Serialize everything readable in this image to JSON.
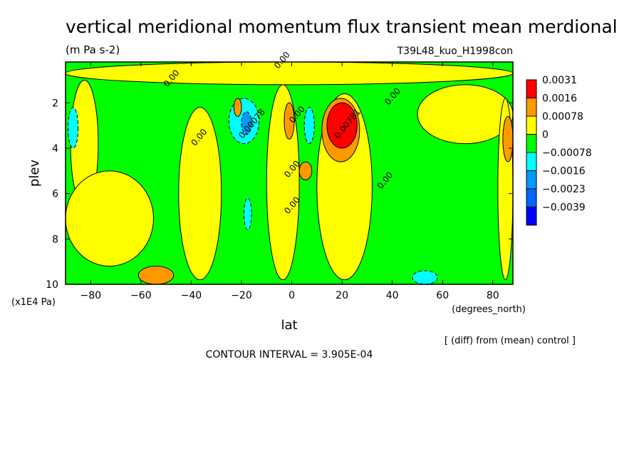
{
  "chart_data": {
    "type": "heatmap",
    "title": "vertical meridional momentum flux transient mean merdional",
    "units": "(m Pa s-2)",
    "run_label": "T39L48_kuo_H1998con",
    "xlabel": "lat",
    "x_units": "(degrees_north)",
    "ylabel": "plev",
    "y_units": "(x1E4 Pa)",
    "xlim": [
      -90,
      88
    ],
    "ylim": [
      0.2,
      10
    ],
    "x_ticks": [
      -80,
      -60,
      -40,
      -20,
      0,
      20,
      40,
      60,
      80
    ],
    "y_ticks": [
      2,
      4,
      6,
      8,
      10
    ],
    "y_inverted": true,
    "diff_note": "[ (diff) from (mean) control ]",
    "contour_interval_text": "CONTOUR INTERVAL = 3.905E-04",
    "legend": {
      "placement": "right",
      "levels": [
        {
          "label": "0.0031",
          "color": "#ff0000"
        },
        {
          "label": "0.0016",
          "color": "#ff9900"
        },
        {
          "label": "0.00078",
          "color": "#ffff00"
        },
        {
          "label": "0",
          "color": "#00ff00"
        },
        {
          "label": "−0.00078",
          "color": "#00ffff"
        },
        {
          "label": "−0.0016",
          "color": "#0099ff"
        },
        {
          "label": "−0.0023",
          "color": "#0066ff"
        },
        {
          "label": "−0.0039",
          "color": "#0000ff"
        }
      ]
    },
    "contour_labels": [
      {
        "text": "0.00",
        "lat": -3,
        "plev": 0.2
      },
      {
        "text": "0.00",
        "lat": -47,
        "plev": 1.0
      },
      {
        "text": "0.00",
        "lat": 41,
        "plev": 1.8
      },
      {
        "text": "0.00078",
        "lat": -15,
        "plev": 3.0
      },
      {
        "text": "0.00",
        "lat": -36,
        "plev": 3.6
      },
      {
        "text": "0.00",
        "lat": 3,
        "plev": 2.6
      },
      {
        "text": "0.00781",
        "lat": 23,
        "plev": 3.0
      },
      {
        "text": "0.00",
        "lat": 38,
        "plev": 5.5
      },
      {
        "text": "0.00",
        "lat": 1,
        "plev": 5.0
      },
      {
        "text": "0.00",
        "lat": 1,
        "plev": 6.6
      }
    ],
    "regions": [
      {
        "level": "0",
        "lat": [
          -90,
          88
        ],
        "plev": [
          0.2,
          10
        ]
      },
      {
        "level": "0.00078",
        "lat": [
          -90,
          88
        ],
        "plev": [
          0.2,
          1.2
        ]
      },
      {
        "level": "0.00078",
        "lat": [
          -88,
          -77
        ],
        "plev": [
          1.0,
          6.6
        ]
      },
      {
        "level": "0.00078",
        "lat": [
          -45,
          -28
        ],
        "plev": [
          2.2,
          9.8
        ]
      },
      {
        "level": "0.00078",
        "lat": [
          10,
          32
        ],
        "plev": [
          1.6,
          9.8
        ]
      },
      {
        "level": "0.00078",
        "lat": [
          -10,
          3
        ],
        "plev": [
          1.2,
          9.8
        ]
      },
      {
        "level": "0.00078",
        "lat": [
          -90,
          -55
        ],
        "plev": [
          5.0,
          9.2
        ]
      },
      {
        "level": "0.00078",
        "lat": [
          50,
          88
        ],
        "plev": [
          1.2,
          3.8
        ]
      },
      {
        "level": "0.00078",
        "lat": [
          82,
          88
        ],
        "plev": [
          1.8,
          9.8
        ]
      },
      {
        "level": "−0.00078",
        "lat": [
          -25,
          -13
        ],
        "plev": [
          1.8,
          3.8
        ]
      },
      {
        "level": "−0.00078",
        "lat": [
          5,
          9
        ],
        "plev": [
          2.2,
          3.8
        ]
      },
      {
        "level": "−0.00078",
        "lat": [
          -89,
          -85
        ],
        "plev": [
          2.2,
          4.0
        ]
      },
      {
        "level": "−0.00078",
        "lat": [
          -19,
          -16
        ],
        "plev": [
          6.2,
          7.6
        ]
      },
      {
        "level": "−0.00078",
        "lat": [
          48,
          58
        ],
        "plev": [
          9.4,
          10
        ]
      },
      {
        "level": "−0.0016",
        "lat": [
          -20,
          -16
        ],
        "plev": [
          2.4,
          3.4
        ]
      },
      {
        "level": "0.0016",
        "lat": [
          12,
          27
        ],
        "plev": [
          1.8,
          4.6
        ]
      },
      {
        "level": "0.0016",
        "lat": [
          -61,
          -47
        ],
        "plev": [
          9.2,
          10
        ]
      },
      {
        "level": "0.0016",
        "lat": [
          -3,
          1
        ],
        "plev": [
          2.0,
          3.6
        ]
      },
      {
        "level": "0.0016",
        "lat": [
          3,
          8
        ],
        "plev": [
          4.6,
          5.4
        ]
      },
      {
        "level": "0.0016",
        "lat": [
          -23,
          -20
        ],
        "plev": [
          1.8,
          2.6
        ]
      },
      {
        "level": "0.0016",
        "lat": [
          84,
          88
        ],
        "plev": [
          2.6,
          4.6
        ]
      },
      {
        "level": "0.0031",
        "lat": [
          14,
          26
        ],
        "plev": [
          2.0,
          4.0
        ]
      }
    ]
  }
}
